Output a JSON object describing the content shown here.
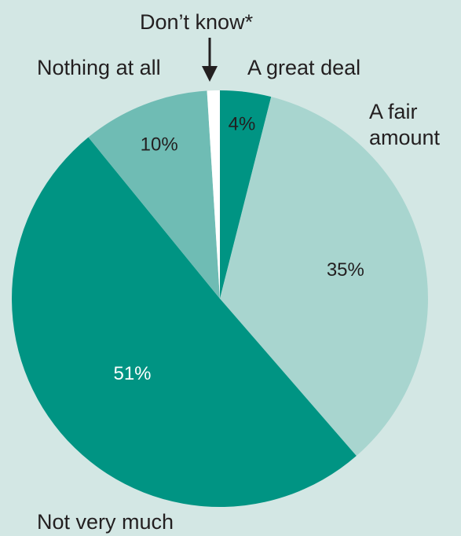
{
  "chart_data": {
    "type": "pie",
    "slices": [
      {
        "name": "A great deal",
        "value": 4,
        "label": "4%",
        "color": "#009483",
        "label_color": "#231f20"
      },
      {
        "name": "A fair amount",
        "value": 35,
        "label": "35%",
        "color": "#a8d5cf",
        "label_color": "#231f20"
      },
      {
        "name": "Not very much",
        "value": 51,
        "label": "51%",
        "color": "#009483",
        "label_color": "#ffffff"
      },
      {
        "name": "Nothing at all",
        "value": 10,
        "label": "10%",
        "color": "#6fbcb4",
        "label_color": "#231f20"
      },
      {
        "name": "Don’t know*",
        "value": 1,
        "label": "",
        "color": "#ffffff",
        "label_color": "#231f20"
      }
    ]
  },
  "labels": {
    "dont_know": "Don’t know*",
    "nothing_at_all": "Nothing at all",
    "great_deal": "A great deal",
    "fair_amount_line1": "A fair",
    "fair_amount_line2": "amount",
    "not_very_much": "Not very much"
  },
  "colors": {
    "background": "#d3e7e4",
    "arrow": "#231f20",
    "text": "#231f20"
  }
}
